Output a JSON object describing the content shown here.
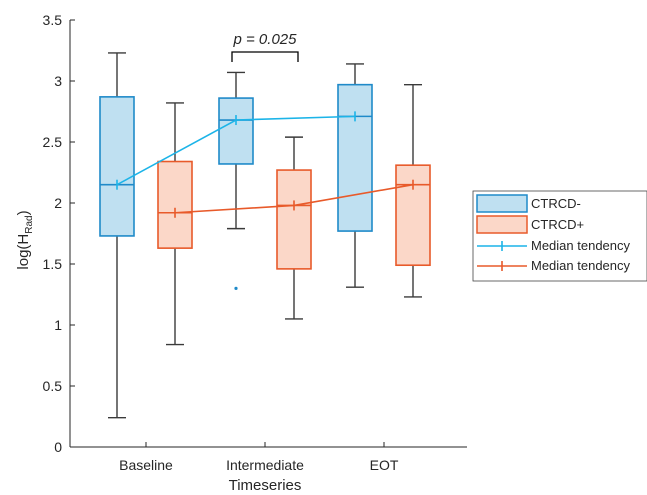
{
  "chart_data": {
    "type": "box",
    "title": "",
    "xlabel": "Timeseries",
    "ylabel_main": "log(H",
    "ylabel_sub": "Rad",
    "ylabel_close": ")",
    "ylim": [
      0,
      3.5
    ],
    "yticks": [
      "0",
      "0.5",
      "1",
      "1.5",
      "2",
      "2.5",
      "3",
      "3.5"
    ],
    "categories": [
      "Baseline",
      "Intermediate",
      "EOT"
    ],
    "grid": false,
    "legend_position": "right",
    "series": [
      {
        "name": "CTRCD-",
        "stroke": "#1f8ac9",
        "fill": "#bfe0f1",
        "boxes": [
          {
            "whisker_low": 0.24,
            "q1": 1.73,
            "median": 2.15,
            "q3": 2.87,
            "whisker_high": 3.23,
            "outliers": []
          },
          {
            "whisker_low": 1.79,
            "q1": 2.32,
            "median": 2.68,
            "q3": 2.86,
            "whisker_high": 3.07,
            "outliers": [
              1.3
            ]
          },
          {
            "whisker_low": 1.31,
            "q1": 1.77,
            "median": 2.71,
            "q3": 2.97,
            "whisker_high": 3.14,
            "outliers": []
          }
        ]
      },
      {
        "name": "CTRCD+",
        "stroke": "#e85a2a",
        "fill": "#fbd7c8",
        "boxes": [
          {
            "whisker_low": 0.84,
            "q1": 1.63,
            "median": 1.92,
            "q3": 2.34,
            "whisker_high": 2.82,
            "outliers": []
          },
          {
            "whisker_low": 1.05,
            "q1": 1.46,
            "median": 1.98,
            "q3": 2.27,
            "whisker_high": 2.54,
            "outliers": []
          },
          {
            "whisker_low": 1.23,
            "q1": 1.49,
            "median": 2.15,
            "q3": 2.31,
            "whisker_high": 2.97,
            "outliers": []
          }
        ]
      }
    ],
    "median_lines": [
      {
        "name": "Median tendency",
        "color": "#1cb4e8",
        "values": [
          2.15,
          2.68,
          2.71
        ]
      },
      {
        "name": "Median tendency",
        "color": "#e85a2a",
        "values": [
          1.92,
          1.98,
          2.15
        ]
      }
    ],
    "annotation": {
      "text": "p = 0.025",
      "between": [
        "Intermediate",
        "Intermediate"
      ]
    }
  }
}
